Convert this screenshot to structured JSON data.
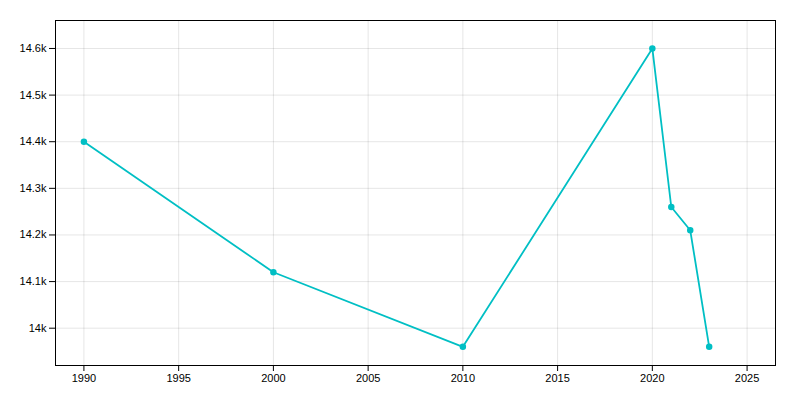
{
  "chart_data": {
    "type": "line",
    "x": [
      1990,
      2000,
      2010,
      2020,
      2021,
      2022,
      2023
    ],
    "values": [
      14400,
      14120,
      13960,
      14600,
      14260,
      14210,
      13960
    ],
    "color": "#00BFC4",
    "marker": "circle",
    "xlim": [
      1988.5,
      2026.5
    ],
    "ylim": [
      13920,
      14660
    ],
    "xticks": [
      1990,
      1995,
      2000,
      2005,
      2010,
      2015,
      2020,
      2025
    ],
    "yticks": [
      {
        "value": 14000,
        "label": "14k"
      },
      {
        "value": 14100,
        "label": "14.1k"
      },
      {
        "value": 14200,
        "label": "14.2k"
      },
      {
        "value": 14300,
        "label": "14.3k"
      },
      {
        "value": 14400,
        "label": "14.4k"
      },
      {
        "value": 14500,
        "label": "14.5k"
      },
      {
        "value": 14600,
        "label": "14.6k"
      }
    ],
    "grid": true
  }
}
